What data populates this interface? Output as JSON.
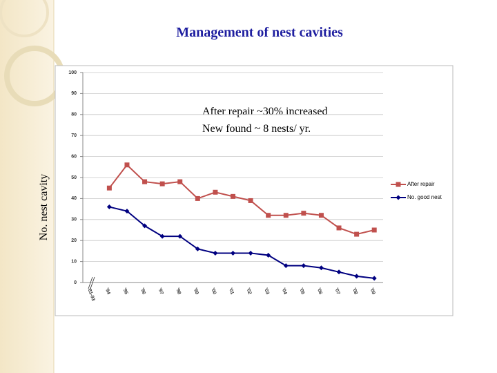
{
  "chart_data": {
    "type": "line",
    "title": "Management of nest cavities",
    "y_label": "No. nest cavity",
    "annotations": [
      "After repair ~30% increased",
      "New found ~ 8 nests/ yr."
    ],
    "categories": [
      "'81-93",
      "'94",
      "'95",
      "'96",
      "'97",
      "'98",
      "'99",
      "'00",
      "'01",
      "'02",
      "'03",
      "'04",
      "'05",
      "'06",
      "'07",
      "'08",
      "'09"
    ],
    "series": [
      {
        "name": "After repair",
        "color": "#c0504d",
        "marker": "square",
        "values": [
          null,
          45,
          56,
          48,
          47,
          48,
          40,
          43,
          41,
          39,
          32,
          32,
          33,
          32,
          26,
          23,
          25
        ]
      },
      {
        "name": "No. good nest",
        "color": "#000080",
        "marker": "diamond",
        "values": [
          null,
          36,
          34,
          27,
          22,
          22,
          16,
          14,
          14,
          14,
          13,
          8,
          8,
          7,
          5,
          3,
          2
        ]
      }
    ],
    "ylim": [
      0,
      100
    ],
    "yticks": [
      0,
      10,
      20,
      30,
      40,
      50,
      60,
      70,
      80,
      90,
      100
    ],
    "grid": true,
    "legend": "right"
  }
}
